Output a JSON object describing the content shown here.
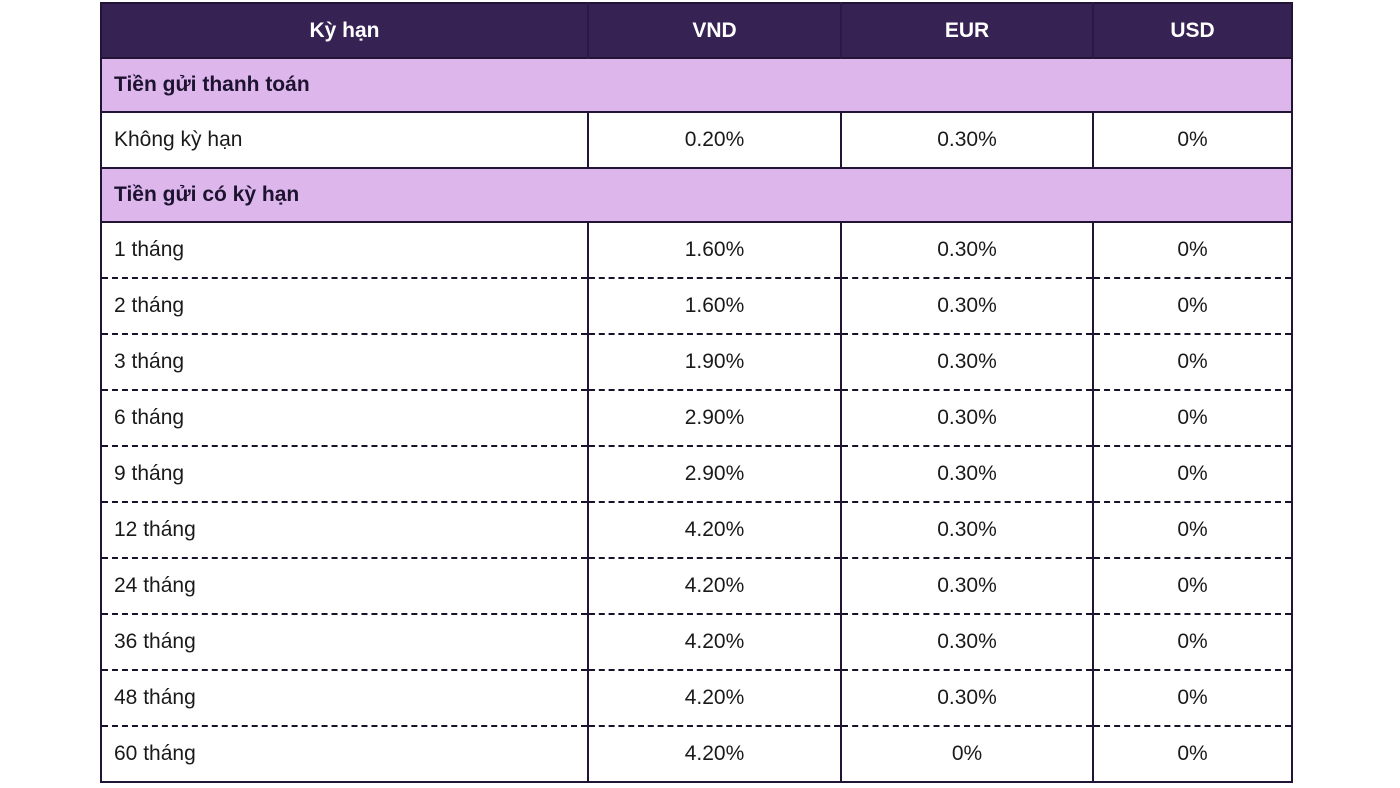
{
  "colors": {
    "header_bg": "#362253",
    "header_text": "#ffffff",
    "section_bg": "#ddb7ec",
    "border": "#221434",
    "dashed_divider": "#18122a",
    "page_bg": "#ffffff"
  },
  "chart_data": {
    "type": "table",
    "title": "",
    "columns": [
      "Kỳ hạn",
      "VND",
      "EUR",
      "USD"
    ],
    "sections": [
      {
        "title": "Tiền gửi thanh toán",
        "divider_style": "solid",
        "rows": [
          [
            "Không kỳ hạn",
            "0.20%",
            "0.30%",
            "0%"
          ]
        ]
      },
      {
        "title": "Tiền gửi có kỳ hạn",
        "divider_style": "dashed",
        "rows": [
          [
            "1 tháng",
            "1.60%",
            "0.30%",
            "0%"
          ],
          [
            "2 tháng",
            "1.60%",
            "0.30%",
            "0%"
          ],
          [
            "3 tháng",
            "1.90%",
            "0.30%",
            "0%"
          ],
          [
            "6 tháng",
            "2.90%",
            "0.30%",
            "0%"
          ],
          [
            "9 tháng",
            "2.90%",
            "0.30%",
            "0%"
          ],
          [
            "12 tháng",
            "4.20%",
            "0.30%",
            "0%"
          ],
          [
            "24 tháng",
            "4.20%",
            "0.30%",
            "0%"
          ],
          [
            "36 tháng",
            "4.20%",
            "0.30%",
            "0%"
          ],
          [
            "48 tháng",
            "4.20%",
            "0.30%",
            "0%"
          ],
          [
            "60 tháng",
            "4.20%",
            "0%",
            "0%"
          ]
        ]
      }
    ]
  }
}
